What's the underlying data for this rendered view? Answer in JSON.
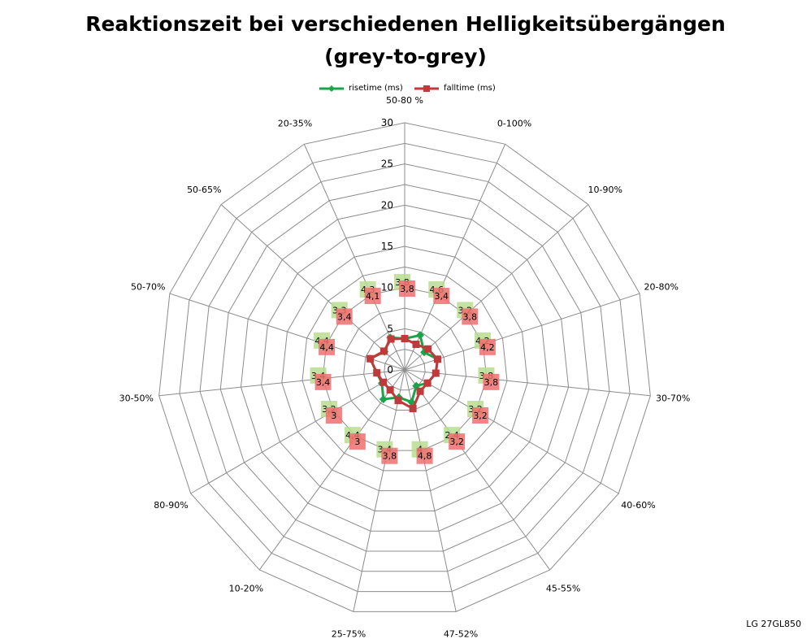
{
  "chart_data": {
    "type": "radar",
    "title_line1": "Reaktionszeit bei verschiedenen Helligkeitsübergängen",
    "title_line2": "(grey-to-grey)",
    "categories": [
      "50-80 %",
      "0-100%",
      "10-90%",
      "20-80%",
      "30-70%",
      "40-60%",
      "45-55%",
      "47-52%",
      "25-75%",
      "10-20%",
      "80-90%",
      "30-50%",
      "50-70%",
      "50-65%",
      "20-35%"
    ],
    "axis_ticks": [
      0,
      5,
      10,
      15,
      20,
      25,
      30
    ],
    "rlim": [
      0,
      30
    ],
    "grid": true,
    "legend_position": "top-center",
    "series": [
      {
        "name": "risetime (ms)",
        "color": "#1aa44a",
        "label_bg": "#b8dc8e",
        "marker": "diamond",
        "values": [
          3.8,
          4.6,
          3.2,
          4.2,
          3.8,
          3.2,
          2.4,
          4.0,
          3.4,
          4.4,
          3.2,
          3.4,
          4.4,
          3.3,
          4.3
        ],
        "labels": [
          "3,8",
          "4,6",
          "3,2",
          "4,2",
          "3,8",
          "3,2",
          "2,4",
          "4",
          "3,4",
          "4,4",
          "3,2",
          "3,4",
          "4,4",
          "3,3",
          "4,3"
        ]
      },
      {
        "name": "falltime (ms)",
        "color": "#c0393b",
        "label_bg": "#ee6f6f",
        "marker": "square",
        "values": [
          3.8,
          3.4,
          3.8,
          4.2,
          3.8,
          3.2,
          3.2,
          4.8,
          3.8,
          3.0,
          3.0,
          3.4,
          4.4,
          3.4,
          4.1
        ],
        "labels": [
          "3,8",
          "3,4",
          "3,8",
          "4,2",
          "3,8",
          "3,2",
          "3,2",
          "4,8",
          "3,8",
          "3",
          "3",
          "3,4",
          "4,4",
          "3,4",
          "4,1"
        ]
      }
    ]
  },
  "watermark": "LG 27GL850"
}
